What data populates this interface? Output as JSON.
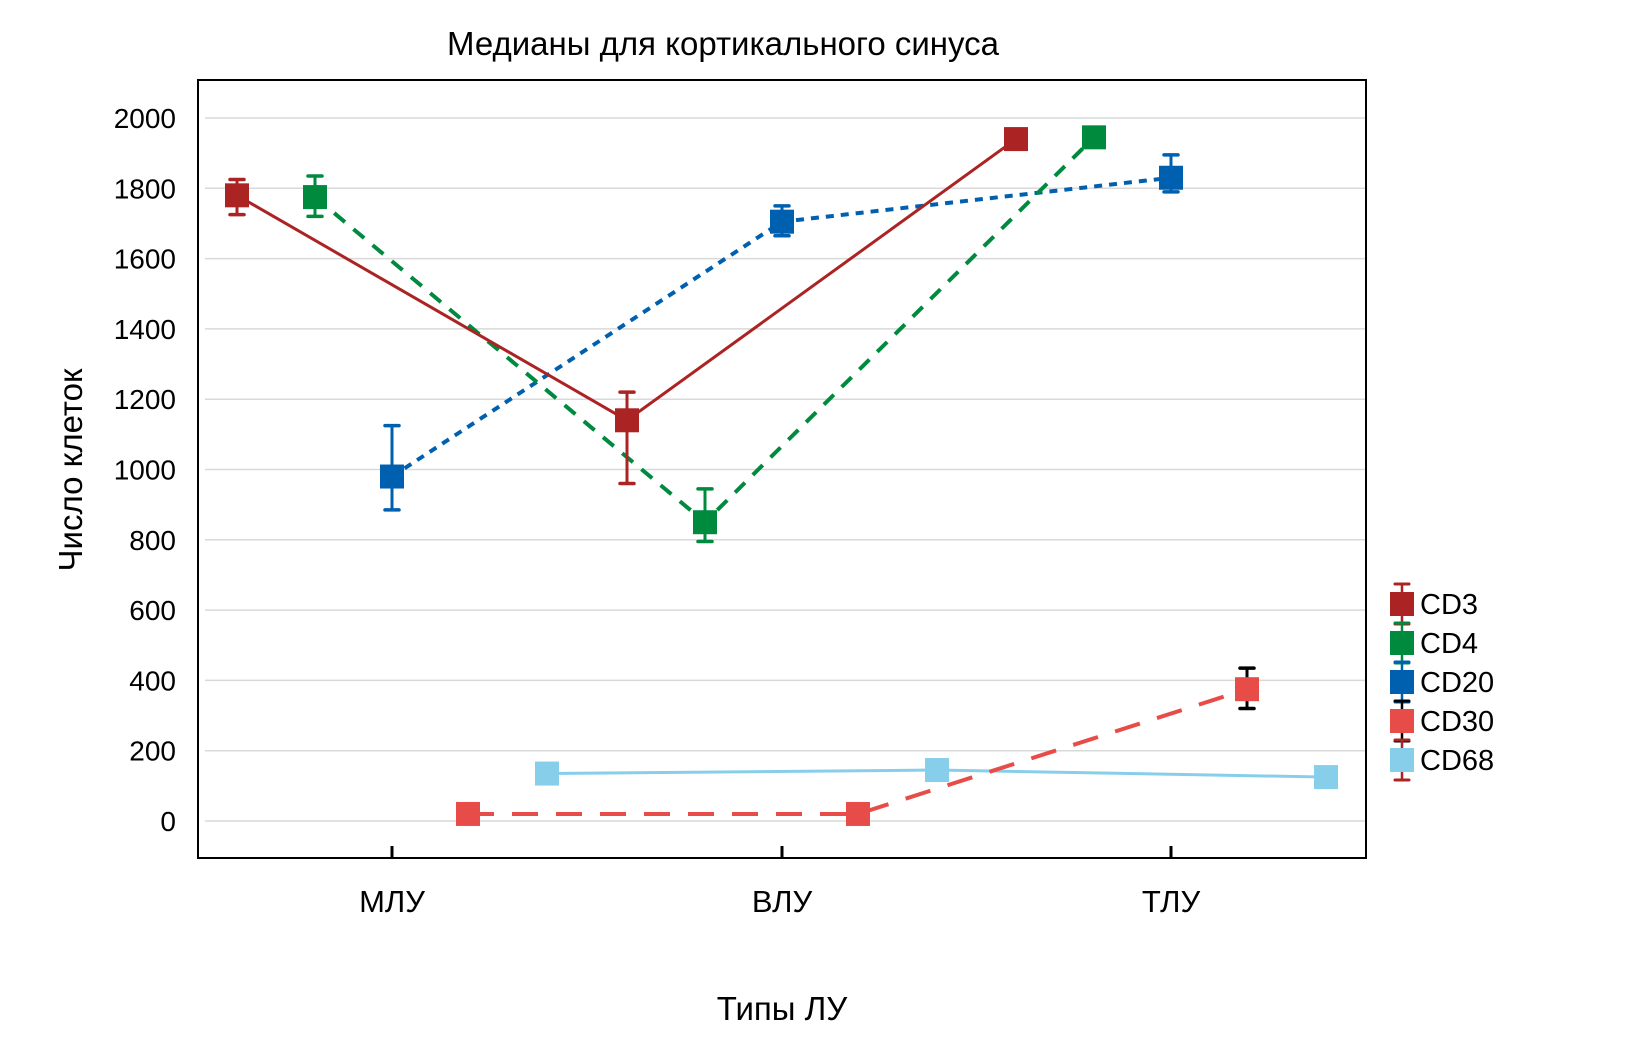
{
  "chart_data": {
    "type": "line",
    "title": "Медианы для кортикального синуса",
    "xlabel": "Типы ЛУ",
    "ylabel": "Число клеток",
    "categories": [
      "МЛУ",
      "ВЛУ",
      "ТЛУ"
    ],
    "ylim": [
      -100,
      2100
    ],
    "yticks": [
      0,
      200,
      400,
      600,
      800,
      1000,
      1200,
      1400,
      1600,
      1800,
      2000
    ],
    "ytick_labels": [
      "0",
      "200",
      "400",
      "600",
      "800",
      "1000",
      "1200",
      "1400",
      "1600",
      "1800",
      "2000"
    ],
    "grid": true,
    "legend_position": "right",
    "series": [
      {
        "name": "CD3",
        "color": "#ac2323",
        "errorbar_color": "#ac2323",
        "line_style": "solid",
        "values": [
          1780,
          1140,
          1940
        ],
        "error_low": [
          1725,
          960,
          null
        ],
        "error_high": [
          1825,
          1220,
          null
        ]
      },
      {
        "name": "CD4",
        "color": "#008a3e",
        "errorbar_color": "#008a3e",
        "line_style": "dashed",
        "values": [
          1775,
          850,
          1945
        ],
        "error_low": [
          1720,
          795,
          null
        ],
        "error_high": [
          1835,
          945,
          null
        ]
      },
      {
        "name": "CD20",
        "color": "#0060b0",
        "errorbar_color": "#0060b0",
        "line_style": "dotted",
        "values": [
          980,
          1705,
          1830
        ],
        "error_low": [
          885,
          1665,
          1790
        ],
        "error_high": [
          1125,
          1750,
          1895
        ]
      },
      {
        "name": "CD30",
        "color": "#e84c48",
        "errorbar_color": "#000000",
        "line_style": "longdash",
        "values": [
          20,
          20,
          375
        ],
        "error_low": [
          null,
          null,
          320
        ],
        "error_high": [
          null,
          null,
          435
        ]
      },
      {
        "name": "CD68",
        "color": "#87ceeb",
        "errorbar_color": "#ac2323",
        "line_style": "solid",
        "values": [
          135,
          145,
          125
        ],
        "error_low": [
          null,
          null,
          null
        ],
        "error_high": [
          null,
          null,
          null
        ]
      }
    ]
  }
}
